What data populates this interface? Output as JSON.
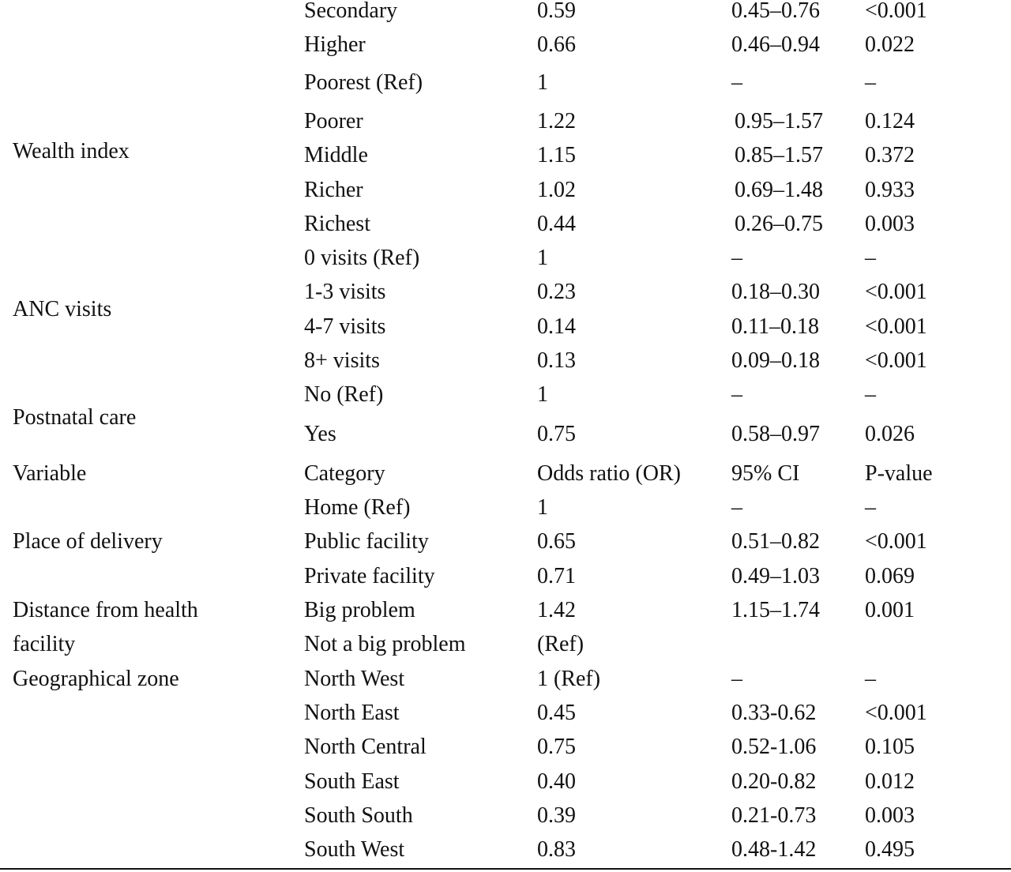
{
  "rows": [
    {
      "variable": "",
      "category": "Secondary",
      "or": "0.59",
      "ci": "0.45–0.76",
      "p": "<0.001"
    },
    {
      "variable": "",
      "category": "Higher",
      "or": "0.66",
      "ci": "0.46–0.94",
      "p": "0.022"
    },
    {
      "variable": "",
      "category": "Poorest (Ref)",
      "or": "1",
      "ci": "–",
      "p": "–"
    },
    {
      "variable": "",
      "category": "Poorer",
      "or": "1.22",
      "ci": "0.95–1.57",
      "p": "0.124"
    },
    {
      "variable": "Wealth index",
      "category": "Middle",
      "or": "1.15",
      "ci": "0.85–1.57",
      "p": "0.372"
    },
    {
      "variable": "",
      "category": "Richer",
      "or": "1.02",
      "ci": "0.69–1.48",
      "p": "0.933"
    },
    {
      "variable": "",
      "category": "Richest",
      "or": "0.44",
      "ci": "0.26–0.75",
      "p": "0.003"
    },
    {
      "variable": "",
      "category": "0 visits (Ref)",
      "or": "1",
      "ci": "–",
      "p": "–"
    },
    {
      "variable": "ANC visits",
      "category": "1-3 visits",
      "or": "0.23",
      "ci": "0.18–0.30",
      "p": "<0.001"
    },
    {
      "variable": "",
      "category": "4-7 visits",
      "or": "0.14",
      "ci": "0.11–0.18",
      "p": "<0.001"
    },
    {
      "variable": "",
      "category": "8+ visits",
      "or": "0.13",
      "ci": "0.09–0.18",
      "p": "<0.001"
    },
    {
      "variable": "",
      "category": "No (Ref)",
      "or": "1",
      "ci": "–",
      "p": "–"
    },
    {
      "variable": "Postnatal care",
      "category": "Yes",
      "or": "0.75",
      "ci": "0.58–0.97",
      "p": "0.026"
    },
    {
      "variable": "Variable",
      "category": "Category",
      "or": "Odds ratio (OR)",
      "ci": "95% CI",
      "p": "P-value"
    },
    {
      "variable": "",
      "category": "Home (Ref)",
      "or": "1",
      "ci": "–",
      "p": "–"
    },
    {
      "variable": "Place of delivery",
      "category": "Public facility",
      "or": "0.65",
      "ci": "0.51–0.82",
      "p": "<0.001"
    },
    {
      "variable": "",
      "category": "Private facility",
      "or": "0.71",
      "ci": "0.49–1.03",
      "p": "0.069"
    },
    {
      "variable": "Distance from health",
      "category": "Big problem",
      "or": "1.42",
      "ci": "1.15–1.74",
      "p": "0.001"
    },
    {
      "variable": "facility",
      "category": "Not a big problem",
      "or": "(Ref)",
      "ci": "",
      "p": ""
    },
    {
      "variable": "Geographical zone",
      "category": "North West",
      "or": "1 (Ref)",
      "ci": "–",
      "p": "–"
    },
    {
      "variable": "",
      "category": "North East",
      "or": "0.45",
      "ci": "0.33-0.62",
      "p": "<0.001"
    },
    {
      "variable": "",
      "category": "North Central",
      "or": "0.75",
      "ci": "0.52-1.06",
      "p": "0.105"
    },
    {
      "variable": "",
      "category": "South East",
      "or": "0.40",
      "ci": "0.20-0.82",
      "p": "0.012"
    },
    {
      "variable": "",
      "category": "South South",
      "or": "0.39",
      "ci": "0.21-0.73",
      "p": "0.003"
    },
    {
      "variable": "",
      "category": "South West",
      "or": "0.83",
      "ci": "0.48-1.42",
      "p": "0.495"
    }
  ]
}
